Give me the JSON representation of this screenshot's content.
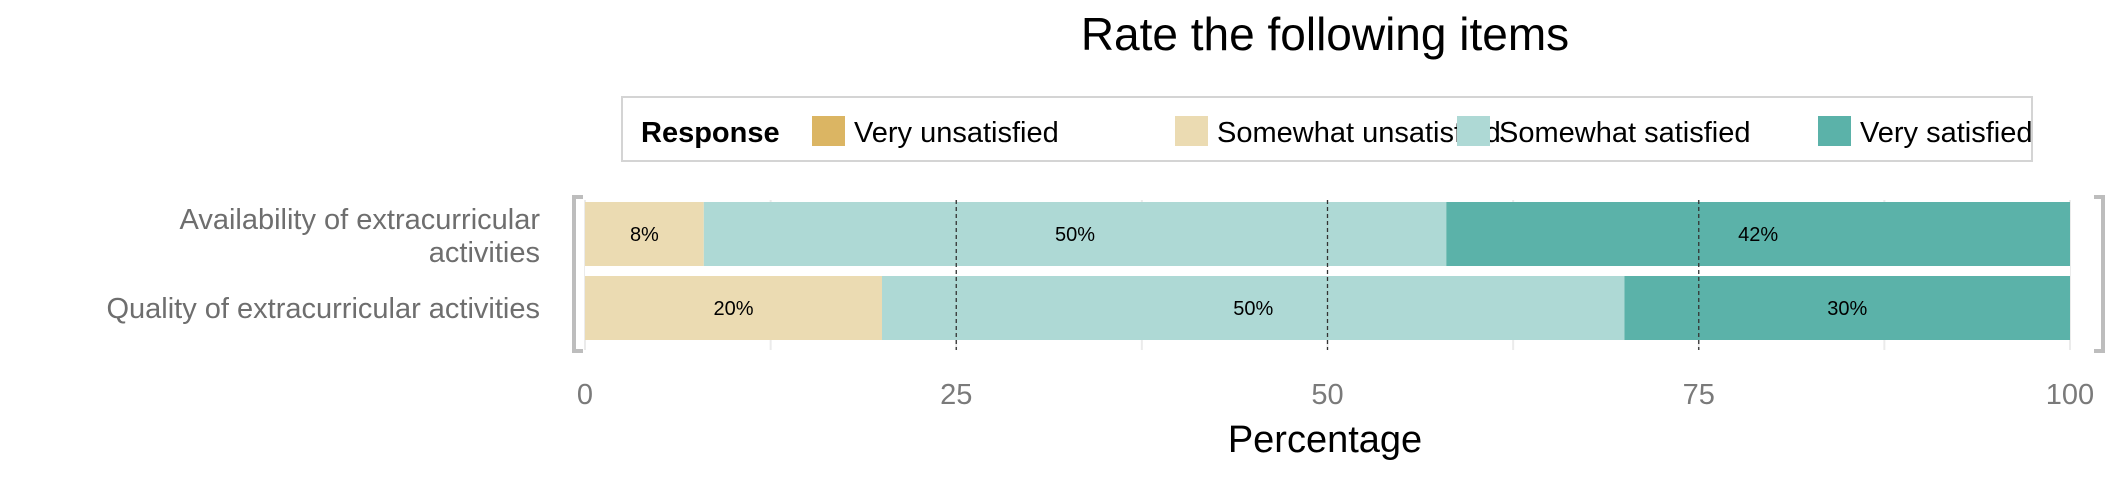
{
  "chart_data": {
    "type": "bar",
    "orientation": "horizontal",
    "stacked": true,
    "title": "Rate the following items",
    "xlabel": "Percentage",
    "ylabel": "",
    "xlim": [
      0,
      100
    ],
    "xticks": [
      "0",
      "25",
      "50",
      "75",
      "100"
    ],
    "legend": {
      "title": "Response",
      "position": "top",
      "entries": [
        "Very unsatisfied",
        "Somewhat unsatisfied",
        "Somewhat satisfied",
        "Very satisfied"
      ]
    },
    "categories": [
      "Availability of extracurricular activities",
      "Quality of extracurricular activities"
    ],
    "series": [
      {
        "name": "Very unsatisfied",
        "color": "#dbb563",
        "values": [
          0,
          0
        ]
      },
      {
        "name": "Somewhat unsatisfied",
        "color": "#ebdbb2",
        "values": [
          8,
          20
        ]
      },
      {
        "name": "Somewhat satisfied",
        "color": "#aed9d5",
        "values": [
          50,
          50
        ]
      },
      {
        "name": "Very satisfied",
        "color": "#5bb2a9",
        "values": [
          42,
          30
        ]
      }
    ],
    "data_labels": [
      [
        "",
        "8%",
        "50%",
        "42%"
      ],
      [
        "",
        "20%",
        "50%",
        "30%"
      ]
    ],
    "grid": true
  }
}
